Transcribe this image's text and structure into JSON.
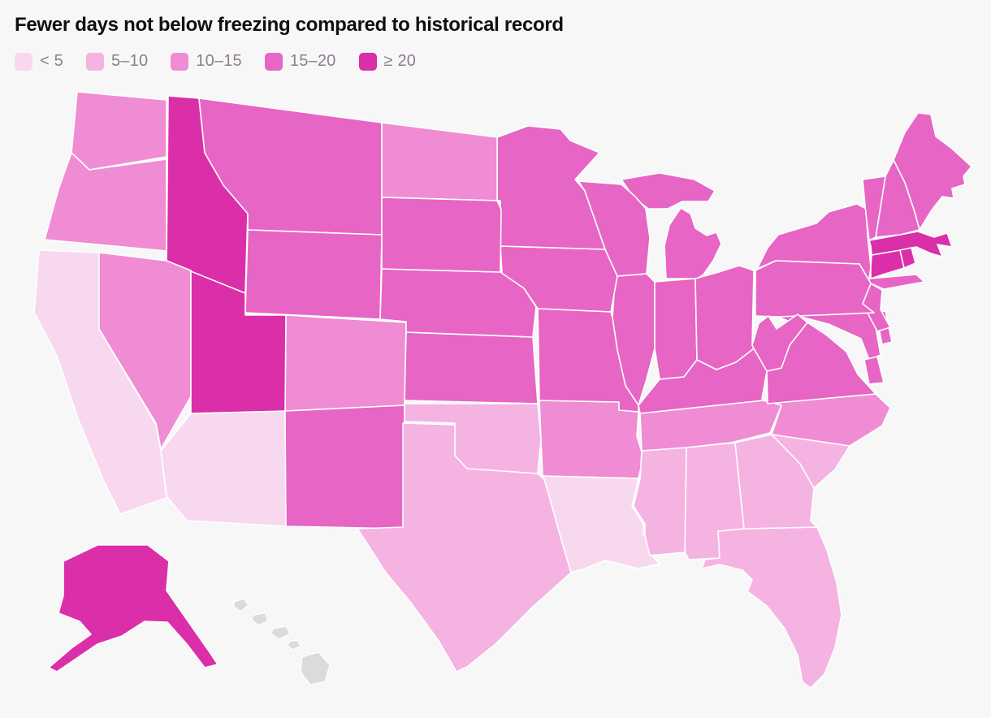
{
  "title": "Fewer days not below freezing compared to historical record",
  "legend": {
    "items": [
      {
        "label": "< 5",
        "color": "#f8d8ef"
      },
      {
        "label": "5–10",
        "color": "#f5b3e2"
      },
      {
        "label": "10–15",
        "color": "#ef8cd3"
      },
      {
        "label": "15–20",
        "color": "#e765c4"
      },
      {
        "label": "≥ 20",
        "color": "#da2fa9"
      }
    ]
  },
  "map": {
    "border_color": "#ffffff",
    "no_data_color": "#dbdbdb",
    "background": "#f7f7f8"
  },
  "chart_data": {
    "type": "heatmap",
    "map_type": "us-state-choropleth",
    "title": "Fewer days not below freezing compared to historical record",
    "unit": "days",
    "legend_position": "top-left",
    "buckets": [
      "< 5",
      "5–10",
      "10–15",
      "15–20",
      "≥ 20"
    ],
    "bucket_colors": [
      "#f8d8ef",
      "#f5b3e2",
      "#ef8cd3",
      "#e765c4",
      "#da2fa9"
    ],
    "states": [
      {
        "name": "Alabama",
        "abbr": "AL",
        "bucket": "5–10"
      },
      {
        "name": "Alaska",
        "abbr": "AK",
        "bucket": "≥ 20"
      },
      {
        "name": "Arizona",
        "abbr": "AZ",
        "bucket": "< 5"
      },
      {
        "name": "Arkansas",
        "abbr": "AR",
        "bucket": "10–15"
      },
      {
        "name": "California",
        "abbr": "CA",
        "bucket": "< 5"
      },
      {
        "name": "Colorado",
        "abbr": "CO",
        "bucket": "10–15"
      },
      {
        "name": "Connecticut",
        "abbr": "CT",
        "bucket": "≥ 20"
      },
      {
        "name": "Delaware",
        "abbr": "DE",
        "bucket": "15–20"
      },
      {
        "name": "Florida",
        "abbr": "FL",
        "bucket": "5–10"
      },
      {
        "name": "Georgia",
        "abbr": "GA",
        "bucket": "5–10"
      },
      {
        "name": "Idaho",
        "abbr": "ID",
        "bucket": "≥ 20"
      },
      {
        "name": "Illinois",
        "abbr": "IL",
        "bucket": "15–20"
      },
      {
        "name": "Indiana",
        "abbr": "IN",
        "bucket": "15–20"
      },
      {
        "name": "Iowa",
        "abbr": "IA",
        "bucket": "15–20"
      },
      {
        "name": "Kansas",
        "abbr": "KS",
        "bucket": "15–20"
      },
      {
        "name": "Kentucky",
        "abbr": "KY",
        "bucket": "15–20"
      },
      {
        "name": "Louisiana",
        "abbr": "LA",
        "bucket": "< 5"
      },
      {
        "name": "Maine",
        "abbr": "ME",
        "bucket": "15–20"
      },
      {
        "name": "Maryland",
        "abbr": "MD",
        "bucket": "15–20"
      },
      {
        "name": "Massachusetts",
        "abbr": "MA",
        "bucket": "≥ 20"
      },
      {
        "name": "Michigan",
        "abbr": "MI",
        "bucket": "15–20"
      },
      {
        "name": "Minnesota",
        "abbr": "MN",
        "bucket": "15–20"
      },
      {
        "name": "Mississippi",
        "abbr": "MS",
        "bucket": "5–10"
      },
      {
        "name": "Missouri",
        "abbr": "MO",
        "bucket": "15–20"
      },
      {
        "name": "Montana",
        "abbr": "MT",
        "bucket": "15–20"
      },
      {
        "name": "Nebraska",
        "abbr": "NE",
        "bucket": "15–20"
      },
      {
        "name": "Nevada",
        "abbr": "NV",
        "bucket": "10–15"
      },
      {
        "name": "New Hampshire",
        "abbr": "NH",
        "bucket": "15–20"
      },
      {
        "name": "New Jersey",
        "abbr": "NJ",
        "bucket": "15–20"
      },
      {
        "name": "New Mexico",
        "abbr": "NM",
        "bucket": "15–20"
      },
      {
        "name": "New York",
        "abbr": "NY",
        "bucket": "15–20"
      },
      {
        "name": "North Carolina",
        "abbr": "NC",
        "bucket": "10–15"
      },
      {
        "name": "North Dakota",
        "abbr": "ND",
        "bucket": "10–15"
      },
      {
        "name": "Ohio",
        "abbr": "OH",
        "bucket": "15–20"
      },
      {
        "name": "Oklahoma",
        "abbr": "OK",
        "bucket": "5–10"
      },
      {
        "name": "Oregon",
        "abbr": "OR",
        "bucket": "10–15"
      },
      {
        "name": "Pennsylvania",
        "abbr": "PA",
        "bucket": "15–20"
      },
      {
        "name": "Rhode Island",
        "abbr": "RI",
        "bucket": "≥ 20"
      },
      {
        "name": "South Carolina",
        "abbr": "SC",
        "bucket": "5–10"
      },
      {
        "name": "South Dakota",
        "abbr": "SD",
        "bucket": "15–20"
      },
      {
        "name": "Tennessee",
        "abbr": "TN",
        "bucket": "10–15"
      },
      {
        "name": "Texas",
        "abbr": "TX",
        "bucket": "5–10"
      },
      {
        "name": "Utah",
        "abbr": "UT",
        "bucket": "≥ 20"
      },
      {
        "name": "Vermont",
        "abbr": "VT",
        "bucket": "15–20"
      },
      {
        "name": "Virginia",
        "abbr": "VA",
        "bucket": "15–20"
      },
      {
        "name": "Washington",
        "abbr": "WA",
        "bucket": "10–15"
      },
      {
        "name": "West Virginia",
        "abbr": "WV",
        "bucket": "15–20"
      },
      {
        "name": "Wisconsin",
        "abbr": "WI",
        "bucket": "15–20"
      },
      {
        "name": "Wyoming",
        "abbr": "WY",
        "bucket": "15–20"
      }
    ],
    "no_data": [
      "Hawaii"
    ]
  }
}
